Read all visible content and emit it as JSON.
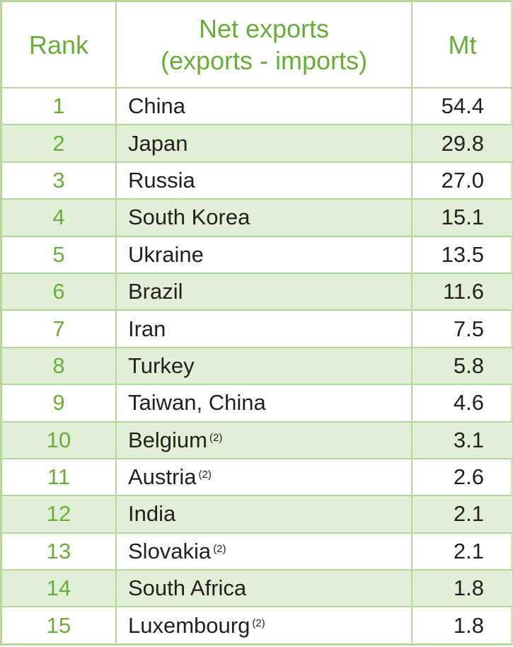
{
  "header": {
    "rank": "Rank",
    "exports_line1": "Net exports",
    "exports_line2": "(exports - imports)",
    "unit": "Mt"
  },
  "rows": [
    {
      "rank": "1",
      "country": "China",
      "note": "",
      "value": "54.4"
    },
    {
      "rank": "2",
      "country": "Japan",
      "note": "",
      "value": "29.8"
    },
    {
      "rank": "3",
      "country": "Russia",
      "note": "",
      "value": "27.0"
    },
    {
      "rank": "4",
      "country": "South Korea",
      "note": "",
      "value": "15.1"
    },
    {
      "rank": "5",
      "country": "Ukraine",
      "note": "",
      "value": "13.5"
    },
    {
      "rank": "6",
      "country": "Brazil",
      "note": "",
      "value": "11.6"
    },
    {
      "rank": "7",
      "country": "Iran",
      "note": "",
      "value": "7.5"
    },
    {
      "rank": "8",
      "country": "Turkey",
      "note": "",
      "value": "5.8"
    },
    {
      "rank": "9",
      "country": "Taiwan, China",
      "note": "",
      "value": "4.6"
    },
    {
      "rank": "10",
      "country": "Belgium",
      "note": "(2)",
      "value": "3.1"
    },
    {
      "rank": "11",
      "country": "Austria",
      "note": "(2)",
      "value": "2.6"
    },
    {
      "rank": "12",
      "country": "India",
      "note": "",
      "value": "2.1"
    },
    {
      "rank": "13",
      "country": "Slovakia",
      "note": "(2)",
      "value": "2.1"
    },
    {
      "rank": "14",
      "country": "South Africa",
      "note": "",
      "value": "1.8"
    },
    {
      "rank": "15",
      "country": "Luxembourg",
      "note": "(2)",
      "value": "1.8"
    }
  ],
  "colors": {
    "accent_green": "#6aac3c",
    "border_green": "#b7d59c",
    "shade_green": "#e2efd7",
    "text_dark": "#231f20"
  }
}
